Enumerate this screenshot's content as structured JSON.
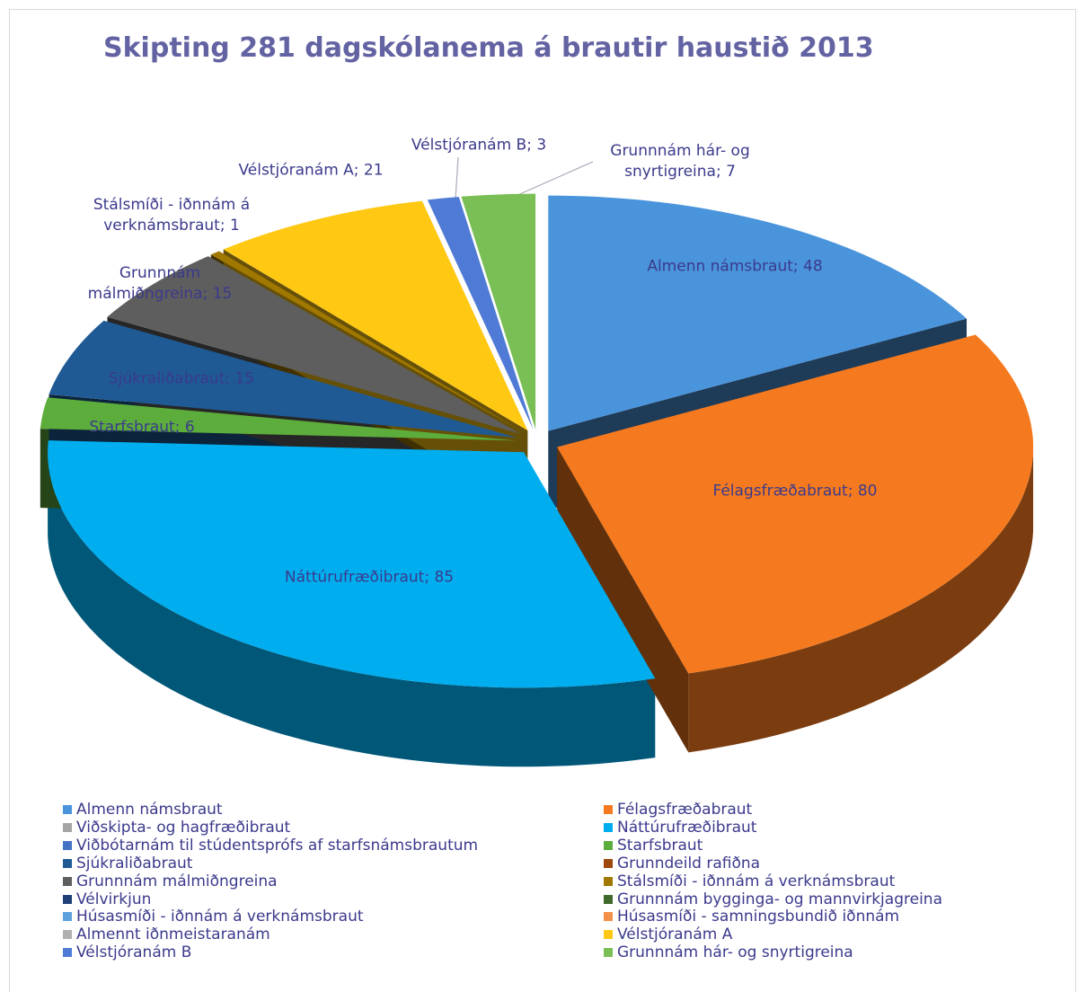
{
  "chart_data": {
    "type": "pie3d",
    "title": "Skipting 281 dagskólanema á brautir haustið 2013",
    "categories": [
      "Almenn námsbraut",
      "Félagsfræðabraut",
      "Viðskipta- og hagfræðibraut",
      "Náttúrufræðibraut",
      "Viðbótarnám til stúdentsprófs af starfsnámsbrautum",
      "Starfsbraut",
      "Sjúkraliðabraut",
      "Grunndeild rafiðna",
      "Grunnnám málmiðngreina",
      "Stálsmíði - iðnnám á verknámsbraut",
      "Vélvirkjun",
      "Grunnnám bygginga- og mannvirkjagreina",
      "Húsasmíði - iðnnám á verknámsbraut",
      "Húsasmíði - samningsbundið iðnnám",
      "Almennt iðnmeistaranám",
      "Vélstjóranám A",
      "Vélstjóranám B",
      "Grunnnám hár- og snyrtigreina"
    ],
    "values": [
      48,
      80,
      0,
      85,
      0,
      6,
      15,
      0,
      15,
      1,
      0,
      0,
      0,
      0,
      0,
      21,
      3,
      7
    ],
    "value_labels": [
      "Almenn námsbraut; 48",
      "Félagsfræðabraut; 80",
      null,
      "Náttúrufræðibraut; 85",
      null,
      "Starfsbraut; 6",
      "Sjúkraliðabraut; 15",
      null,
      "Grunnnám málmiðngreina; 15",
      "Stálsmíði - iðnnám á verknámsbraut; 1",
      null,
      null,
      null,
      null,
      null,
      "Vélstjóranám A; 21",
      "Vélstjóranám B; 3",
      "Grunnnám hár- og snyrtigreina; 7"
    ],
    "colors": [
      "#4a94dc",
      "#f57a1f",
      "#a5a5a5",
      "#00aeef",
      "#4472c4",
      "#5cad3c",
      "#1f5a94",
      "#9e480e",
      "#5e5e5e",
      "#a07800",
      "#203f78",
      "#3f6a2b",
      "#5ea0dc",
      "#f3914a",
      "#b0b0b0",
      "#ffc812",
      "#4f7bd6",
      "#79bf55"
    ],
    "legend": "bottom"
  }
}
